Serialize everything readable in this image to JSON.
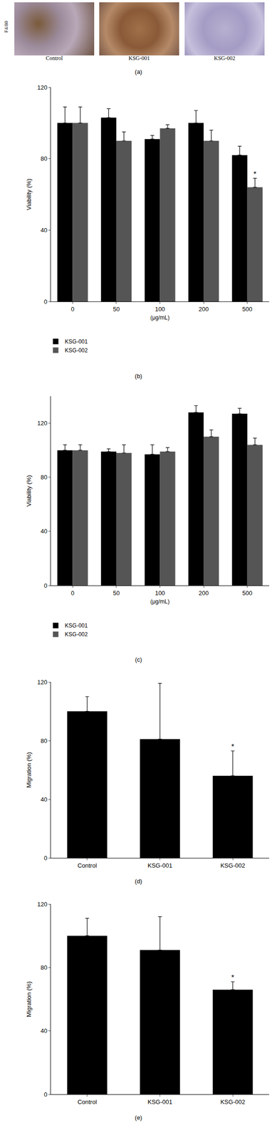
{
  "figure_a": {
    "y_label": "F4/80",
    "panels": [
      "Control",
      "KSG-001",
      "KSG-002"
    ],
    "caption": "(a)"
  },
  "chart_data": [
    {
      "type": "bar",
      "title": "(b)",
      "x_label": "(μg/mL)",
      "y_label": "Viability (%)",
      "categories": [
        "0",
        "50",
        "100",
        "200",
        "500"
      ],
      "series": [
        {
          "name": "KSG-001",
          "color": "#000000",
          "values": [
            100,
            103,
            91,
            100,
            82
          ],
          "errors": [
            9,
            5,
            2,
            7,
            5
          ]
        },
        {
          "name": "KSG-002",
          "color": "#555555",
          "values": [
            100,
            90,
            97,
            90,
            64
          ],
          "errors": [
            9,
            5,
            2,
            6,
            5
          ]
        }
      ],
      "ylim": [
        0,
        120
      ],
      "yticks": [
        0,
        40,
        80,
        120
      ],
      "legend": "bottom",
      "annotations": [
        {
          "category": "500",
          "series": "KSG-002",
          "text": "*"
        }
      ]
    },
    {
      "type": "bar",
      "title": "(c)",
      "x_label": "(μg/mL)",
      "y_label": "Viability (%)",
      "categories": [
        "0",
        "50",
        "100",
        "200",
        "500"
      ],
      "series": [
        {
          "name": "KSG-001",
          "color": "#000000",
          "values": [
            100,
            99,
            97,
            128,
            127
          ],
          "errors": [
            4,
            2,
            7,
            5,
            4
          ]
        },
        {
          "name": "KSG-002",
          "color": "#555555",
          "values": [
            100,
            98,
            99,
            110,
            104
          ],
          "errors": [
            4,
            6,
            3,
            5,
            5
          ]
        }
      ],
      "ylim": [
        0,
        140
      ],
      "yticks": [
        0,
        40,
        80,
        120
      ],
      "legend": "bottom"
    },
    {
      "type": "bar",
      "title": "(d)",
      "y_label": "Migration (%)",
      "categories": [
        "Control",
        "KSG-001",
        "KSG-002"
      ],
      "values": [
        100,
        81,
        56
      ],
      "errors": [
        10,
        38,
        17
      ],
      "color": "#000000",
      "ylim": [
        0,
        120
      ],
      "yticks": [
        0,
        40,
        80,
        120
      ],
      "annotations": [
        {
          "category": "KSG-002",
          "text": "*"
        }
      ]
    },
    {
      "type": "bar",
      "title": "(e)",
      "y_label": "Migration (%)",
      "categories": [
        "Control",
        "KSG-001",
        "KSG-002"
      ],
      "values": [
        100,
        91,
        66
      ],
      "errors": [
        11,
        21,
        5
      ],
      "color": "#000000",
      "ylim": [
        0,
        120
      ],
      "yticks": [
        0,
        40,
        80,
        120
      ],
      "annotations": [
        {
          "category": "KSG-002",
          "text": "*"
        }
      ]
    }
  ]
}
